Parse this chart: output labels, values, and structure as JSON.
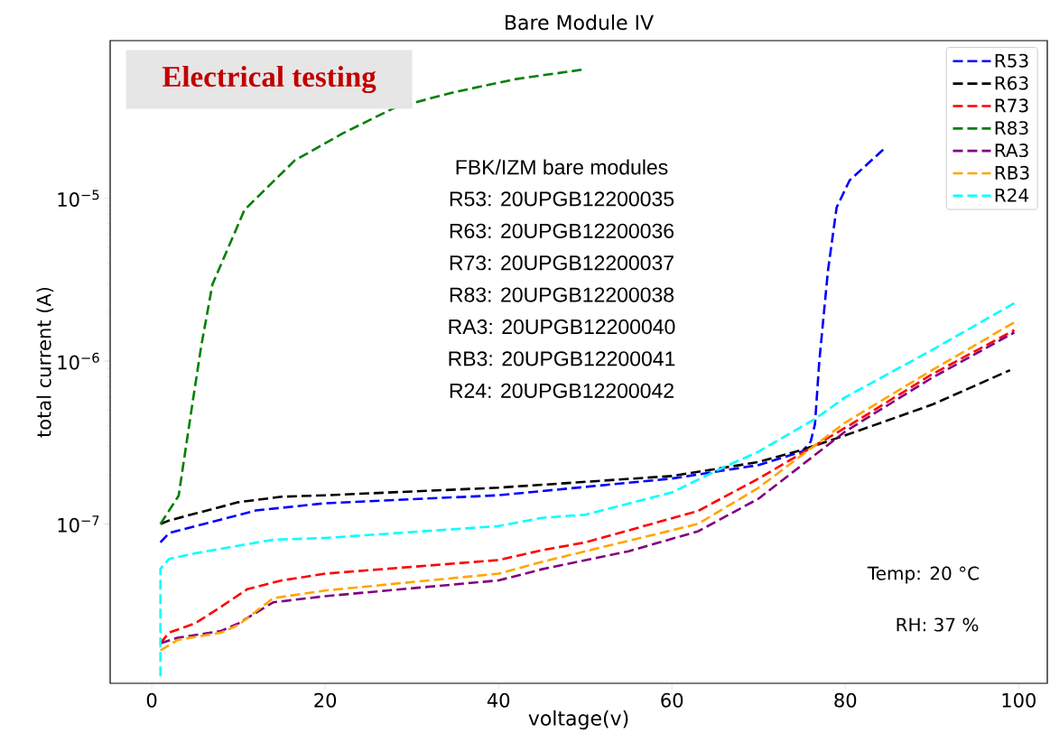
{
  "chart_data": {
    "type": "line",
    "title": "Bare Module IV",
    "xlabel": "voltage(v)",
    "ylabel": "total current (A)",
    "log": "y",
    "xlim": [
      -4.8,
      103.3
    ],
    "ylim": [
      1.05e-08,
      9.3e-05
    ],
    "xticks": [
      0,
      20,
      40,
      60,
      80,
      100
    ],
    "yticks": [
      {
        "value": 1e-07,
        "label": "10$^{−7}$"
      },
      {
        "value": 1e-06,
        "label": "10$^{−6}$"
      },
      {
        "value": 1e-05,
        "label": "10$^{−5}$"
      }
    ],
    "legend": "top right",
    "line_style": "dashed",
    "marker": "none",
    "grid": false,
    "annotations": [
      "Electrical testing",
      "FBK/IZM bare modules",
      "R53: 20UPGB12200035",
      "R63: 20UPGB12200036",
      "R73: 20UPGB12200037",
      "R83: 20UPGB12200038",
      "RA3: 20UPGB12200040",
      "RB3: 20UPGB12200041",
      "R24: 20UPGB12200042",
      "Temp: 20 °C",
      "RH: 37 %"
    ],
    "series": [
      {
        "name": "R53",
        "color": "#0000ff",
        "x": [
          1,
          2,
          7,
          12,
          20,
          40,
          60,
          70,
          75,
          76,
          76.5,
          77,
          78,
          79,
          80.5,
          84.5
        ],
        "values": [
          7.7e-08,
          8.8e-08,
          1.03e-07,
          1.21e-07,
          1.34e-07,
          1.5e-07,
          1.9e-07,
          2.3e-07,
          2.78e-07,
          3.2e-07,
          4.1e-07,
          1e-06,
          3.6e-06,
          8.8e-06,
          1.29e-05,
          2.02e-05
        ]
      },
      {
        "name": "R63",
        "color": "#000000",
        "x": [
          1,
          2,
          10,
          15,
          20,
          40,
          60,
          70,
          75,
          80,
          90,
          99
        ],
        "values": [
          1e-07,
          1.05e-07,
          1.36e-07,
          1.47e-07,
          1.5e-07,
          1.67e-07,
          1.97e-07,
          2.4e-07,
          2.85e-07,
          3.5e-07,
          5.4e-07,
          8.8e-07
        ]
      },
      {
        "name": "R73",
        "color": "#ff0000",
        "x": [
          1,
          2,
          5,
          8,
          11,
          15,
          20,
          40,
          45,
          50,
          63,
          70,
          80.7,
          90,
          99.5
        ],
        "values": [
          1.85e-08,
          2.15e-08,
          2.45e-08,
          3.1e-08,
          3.97e-08,
          4.5e-08,
          4.95e-08,
          6e-08,
          6.9e-08,
          7.7e-08,
          1.2e-07,
          1.9e-07,
          4.1e-07,
          8.3e-07,
          1.55e-06
        ]
      },
      {
        "name": "R83",
        "color": "#008000",
        "x": [
          1,
          3.1,
          4.6,
          5.7,
          7,
          10.7,
          16.5,
          22,
          28,
          35,
          42,
          50
        ],
        "values": [
          1e-07,
          1.49e-07,
          5.1e-07,
          1.23e-06,
          2.96e-06,
          8.5e-06,
          1.71e-05,
          2.5e-05,
          3.6e-05,
          4.5e-05,
          5.4e-05,
          6.2e-05
        ]
      },
      {
        "name": "RA3",
        "color": "#800080",
        "x": [
          1,
          3,
          8,
          10,
          14,
          20,
          40,
          45,
          55,
          63,
          70,
          80,
          90,
          99.5
        ],
        "values": [
          1.85e-08,
          2e-08,
          2.2e-08,
          2.45e-08,
          3.3e-08,
          3.6e-08,
          4.5e-08,
          5.27e-08,
          6.8e-08,
          9e-08,
          1.43e-07,
          3.7e-07,
          7.9e-07,
          1.5e-06
        ]
      },
      {
        "name": "RB3",
        "color": "#ffa500",
        "x": [
          1,
          3,
          8,
          10,
          14,
          20,
          40,
          45,
          63,
          70,
          80,
          90,
          99.5
        ],
        "values": [
          1.67e-08,
          1.94e-08,
          2.15e-08,
          2.4e-08,
          3.5e-08,
          3.9e-08,
          4.95e-08,
          5.85e-08,
          1e-07,
          1.67e-07,
          4.2e-07,
          8.8e-07,
          1.73e-06
        ]
      },
      {
        "name": "R24",
        "color": "#00ffff",
        "x": [
          1,
          1,
          2,
          5,
          9,
          14,
          20,
          40,
          45,
          50,
          60,
          65.8,
          70,
          76.5,
          80,
          90,
          99.5
        ],
        "values": [
          1.16e-08,
          5.3e-08,
          6.1e-08,
          6.6e-08,
          7.2e-08,
          8e-08,
          8.2e-08,
          9.7e-08,
          1.09e-07,
          1.14e-07,
          1.56e-07,
          2.21e-07,
          2.78e-07,
          4.41e-07,
          6e-07,
          1.17e-06,
          2.27e-06
        ]
      }
    ]
  }
}
